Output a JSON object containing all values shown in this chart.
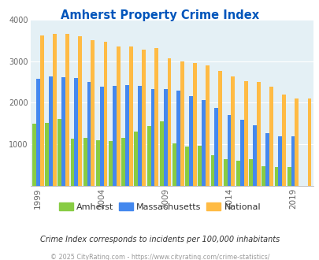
{
  "title": "Amherst Property Crime Index",
  "title_color": "#0055bb",
  "years": [
    1999,
    2000,
    2001,
    2002,
    2003,
    2004,
    2005,
    2006,
    2007,
    2008,
    2009,
    2010,
    2011,
    2012,
    2013,
    2014,
    2015,
    2016,
    2017,
    2018,
    2019,
    2020
  ],
  "amherst": [
    1500,
    1520,
    1600,
    1140,
    1150,
    1100,
    1080,
    1150,
    1310,
    1440,
    1550,
    1020,
    940,
    960,
    730,
    650,
    600,
    650,
    480,
    460,
    460,
    0
  ],
  "massachusetts": [
    2570,
    2630,
    2620,
    2590,
    2490,
    2380,
    2400,
    2420,
    2400,
    2330,
    2330,
    2290,
    2160,
    2060,
    1880,
    1700,
    1590,
    1460,
    1260,
    1200,
    1200,
    0
  ],
  "national": [
    3620,
    3660,
    3650,
    3600,
    3510,
    3460,
    3360,
    3350,
    3280,
    3310,
    3060,
    3000,
    2950,
    2900,
    2770,
    2640,
    2510,
    2490,
    2380,
    2200,
    2110,
    2110
  ],
  "amherst_color": "#88cc44",
  "massachusetts_color": "#4488ee",
  "national_color": "#ffbb44",
  "background_color": "#e4f0f5",
  "ylim": [
    0,
    4000
  ],
  "yticks": [
    0,
    1000,
    2000,
    3000,
    4000
  ],
  "xlabel_ticks": [
    1999,
    2004,
    2009,
    2014,
    2019
  ],
  "footnote1": "Crime Index corresponds to incidents per 100,000 inhabitants",
  "footnote2": "© 2025 CityRating.com - https://www.cityrating.com/crime-statistics/",
  "legend_labels": [
    "Amherst",
    "Massachusetts",
    "National"
  ]
}
